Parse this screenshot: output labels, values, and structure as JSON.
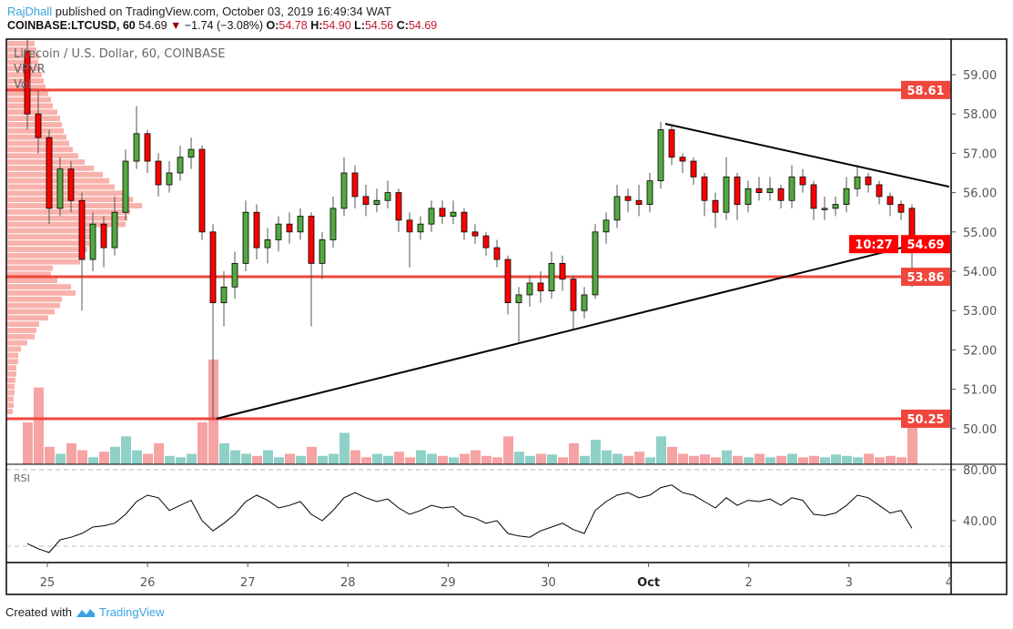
{
  "header": {
    "author": "RajDhall",
    "published_text": " published on TradingView.com, October 03, 2019 16:49:34 WAT",
    "symbol": "COINBASE:LTCUSD, 60",
    "last": "54.69",
    "change": "−1.74 (−3.08%)",
    "o_label": "O:",
    "o": "54.78",
    "h_label": "H:",
    "h": "54.90",
    "l_label": "L:",
    "l": "54.56",
    "c_label": "C:",
    "c": "54.69"
  },
  "legend": {
    "title": "Litecoin / U.S. Dollar, 60, COINBASE",
    "vpvr": "VPVR",
    "vol": "Vol",
    "rsi": "RSI"
  },
  "footer": {
    "created_with": "Created with",
    "brand": "TradingView"
  },
  "colors": {
    "up": "#53a93f",
    "down": "#ff0000",
    "level": "#f0463c",
    "vol_up": "#8fd1c8",
    "vol_down": "#f5a3a3",
    "vpvr": "#f8a39c",
    "brand": "#3aa3e3"
  },
  "chart_data": {
    "type": "candlestick",
    "price_axis": {
      "ticks": [
        "59.00",
        "58.00",
        "57.00",
        "56.00",
        "55.00",
        "54.00",
        "53.00",
        "52.00",
        "51.00",
        "50.00"
      ],
      "range": [
        49.6,
        60.0
      ]
    },
    "time_axis": {
      "ticks": [
        "25",
        "26",
        "27",
        "28",
        "29",
        "30",
        "Oct",
        "2",
        "3",
        "4"
      ]
    },
    "horizontal_levels": [
      {
        "price": 58.61,
        "label": "58.61"
      },
      {
        "price": 53.86,
        "label": "53.86"
      },
      {
        "price": 50.25,
        "label": "50.25"
      }
    ],
    "last_price": {
      "price": 54.69,
      "label": "54.69",
      "countdown": "10:27"
    },
    "trendlines": [
      {
        "from": [
          "2019-10-01T04:00",
          57.75
        ],
        "to": [
          "2019-10-04T00:00",
          56.15
        ]
      },
      {
        "from": [
          "2019-09-26T16:30",
          50.25
        ],
        "to": [
          "2019-10-04T00:00",
          54.9
        ]
      }
    ],
    "candles": [
      [
        59.6,
        59.9,
        57.6,
        58.0
      ],
      [
        58.0,
        58.6,
        57.0,
        57.4
      ],
      [
        57.4,
        57.6,
        55.2,
        55.6
      ],
      [
        55.6,
        56.9,
        55.4,
        56.6
      ],
      [
        56.6,
        56.8,
        55.5,
        55.8
      ],
      [
        55.8,
        56.0,
        53.0,
        54.3
      ],
      [
        54.3,
        55.5,
        54.0,
        55.2
      ],
      [
        55.2,
        55.4,
        54.1,
        54.6
      ],
      [
        54.6,
        55.9,
        54.4,
        55.5
      ],
      [
        55.5,
        57.1,
        55.3,
        56.8
      ],
      [
        56.8,
        58.2,
        56.6,
        57.5
      ],
      [
        57.5,
        57.6,
        56.5,
        56.8
      ],
      [
        56.8,
        57.0,
        55.9,
        56.2
      ],
      [
        56.2,
        56.8,
        56.0,
        56.5
      ],
      [
        56.5,
        57.2,
        56.3,
        56.9
      ],
      [
        56.9,
        57.4,
        56.6,
        57.1
      ],
      [
        57.1,
        57.2,
        54.8,
        55.0
      ],
      [
        55.0,
        55.2,
        50.25,
        53.2
      ],
      [
        53.2,
        54.0,
        52.6,
        53.6
      ],
      [
        53.6,
        54.5,
        53.3,
        54.2
      ],
      [
        54.2,
        55.8,
        54.0,
        55.5
      ],
      [
        55.5,
        55.7,
        54.3,
        54.6
      ],
      [
        54.6,
        55.1,
        54.2,
        54.8
      ],
      [
        54.8,
        55.4,
        54.5,
        55.2
      ],
      [
        55.2,
        55.5,
        54.7,
        55.0
      ],
      [
        55.0,
        55.6,
        54.8,
        55.4
      ],
      [
        55.4,
        55.5,
        52.6,
        54.2
      ],
      [
        54.2,
        55.0,
        53.8,
        54.8
      ],
      [
        54.8,
        55.9,
        54.6,
        55.6
      ],
      [
        55.6,
        56.9,
        55.4,
        56.5
      ],
      [
        56.5,
        56.7,
        55.6,
        55.9
      ],
      [
        55.9,
        56.2,
        55.4,
        55.7
      ],
      [
        55.7,
        56.1,
        55.5,
        55.8
      ],
      [
        55.8,
        56.3,
        55.6,
        56.0
      ],
      [
        56.0,
        56.1,
        55.0,
        55.3
      ],
      [
        55.3,
        55.5,
        54.1,
        55.0
      ],
      [
        55.0,
        55.4,
        54.8,
        55.2
      ],
      [
        55.2,
        55.8,
        55.0,
        55.6
      ],
      [
        55.6,
        55.8,
        55.2,
        55.4
      ],
      [
        55.4,
        55.8,
        55.2,
        55.5
      ],
      [
        55.5,
        55.6,
        54.8,
        55.0
      ],
      [
        55.0,
        55.2,
        54.7,
        54.9
      ],
      [
        54.9,
        55.0,
        54.4,
        54.6
      ],
      [
        54.6,
        54.8,
        54.1,
        54.3
      ],
      [
        54.3,
        54.4,
        52.9,
        53.2
      ],
      [
        53.2,
        53.6,
        52.2,
        53.4
      ],
      [
        53.4,
        53.9,
        53.1,
        53.7
      ],
      [
        53.7,
        54.0,
        53.2,
        53.5
      ],
      [
        53.5,
        54.5,
        53.3,
        54.2
      ],
      [
        54.2,
        54.4,
        53.5,
        53.8
      ],
      [
        53.8,
        53.9,
        52.5,
        53.0
      ],
      [
        53.0,
        53.6,
        52.8,
        53.4
      ],
      [
        53.4,
        55.2,
        53.3,
        55.0
      ],
      [
        55.0,
        55.5,
        54.7,
        55.3
      ],
      [
        55.3,
        56.2,
        55.1,
        55.9
      ],
      [
        55.9,
        56.1,
        55.5,
        55.8
      ],
      [
        55.8,
        56.2,
        55.4,
        55.7
      ],
      [
        55.7,
        56.5,
        55.5,
        56.3
      ],
      [
        56.3,
        57.8,
        56.1,
        57.6
      ],
      [
        57.6,
        57.7,
        56.7,
        56.9
      ],
      [
        56.9,
        57.0,
        56.5,
        56.8
      ],
      [
        56.8,
        56.9,
        56.2,
        56.4
      ],
      [
        56.4,
        56.5,
        55.4,
        55.8
      ],
      [
        55.8,
        56.0,
        55.1,
        55.5
      ],
      [
        55.5,
        56.9,
        55.3,
        56.4
      ],
      [
        56.4,
        56.5,
        55.3,
        55.7
      ],
      [
        55.7,
        56.3,
        55.5,
        56.1
      ],
      [
        56.1,
        56.4,
        55.8,
        56.0
      ],
      [
        56.0,
        56.4,
        55.8,
        56.1
      ],
      [
        56.1,
        56.2,
        55.6,
        55.8
      ],
      [
        55.8,
        56.7,
        55.6,
        56.4
      ],
      [
        56.4,
        56.6,
        56.0,
        56.2
      ],
      [
        56.2,
        56.3,
        55.3,
        55.6
      ],
      [
        55.6,
        55.9,
        55.3,
        55.6
      ],
      [
        55.6,
        55.9,
        55.4,
        55.7
      ],
      [
        55.7,
        56.4,
        55.5,
        56.1
      ],
      [
        56.1,
        56.7,
        55.9,
        56.4
      ],
      [
        56.4,
        56.5,
        56.0,
        56.2
      ],
      [
        56.2,
        56.3,
        55.7,
        55.9
      ],
      [
        55.9,
        56.0,
        55.4,
        55.7
      ],
      [
        55.7,
        55.8,
        55.3,
        55.5
      ],
      [
        55.6,
        55.7,
        53.6,
        54.69
      ]
    ],
    "volume": [
      60,
      110,
      25,
      15,
      30,
      20,
      10,
      18,
      25,
      40,
      20,
      15,
      30,
      12,
      10,
      15,
      60,
      150,
      30,
      20,
      15,
      12,
      20,
      10,
      15,
      12,
      25,
      12,
      15,
      45,
      20,
      10,
      15,
      12,
      18,
      10,
      20,
      15,
      12,
      10,
      15,
      20,
      12,
      10,
      40,
      18,
      12,
      15,
      14,
      10,
      30,
      12,
      35,
      20,
      15,
      12,
      18,
      10,
      40,
      25,
      15,
      12,
      14,
      10,
      20,
      12,
      10,
      15,
      10,
      12,
      15,
      10,
      12,
      10,
      14,
      12,
      10,
      15,
      10,
      12,
      10,
      60
    ],
    "vpvr": [
      30,
      32,
      35,
      34,
      36,
      38,
      40,
      42,
      45,
      48,
      50,
      55,
      58,
      60,
      62,
      65,
      68,
      72,
      78,
      85,
      95,
      105,
      112,
      118,
      128,
      138,
      148,
      135,
      132,
      130,
      95,
      92,
      90,
      88,
      85,
      80,
      50,
      48,
      55,
      70,
      75,
      60,
      58,
      52,
      45,
      35,
      32,
      30,
      22,
      15,
      12,
      12,
      10,
      10,
      9,
      8,
      8,
      7,
      7,
      6
    ],
    "rsi": {
      "ticks": [
        "80.00",
        "40.00"
      ],
      "bands": [
        80,
        20
      ],
      "values": [
        22,
        18,
        15,
        25,
        27,
        30,
        35,
        36,
        38,
        45,
        55,
        60,
        58,
        48,
        52,
        56,
        40,
        32,
        38,
        45,
        55,
        60,
        56,
        50,
        52,
        55,
        45,
        40,
        48,
        58,
        62,
        58,
        55,
        57,
        50,
        45,
        48,
        52,
        50,
        51,
        44,
        42,
        38,
        40,
        30,
        28,
        27,
        32,
        35,
        38,
        33,
        30,
        48,
        55,
        60,
        62,
        58,
        60,
        66,
        68,
        62,
        60,
        55,
        50,
        58,
        52,
        56,
        55,
        57,
        52,
        58,
        56,
        45,
        44,
        46,
        52,
        60,
        58,
        52,
        46,
        48,
        34
      ]
    }
  }
}
